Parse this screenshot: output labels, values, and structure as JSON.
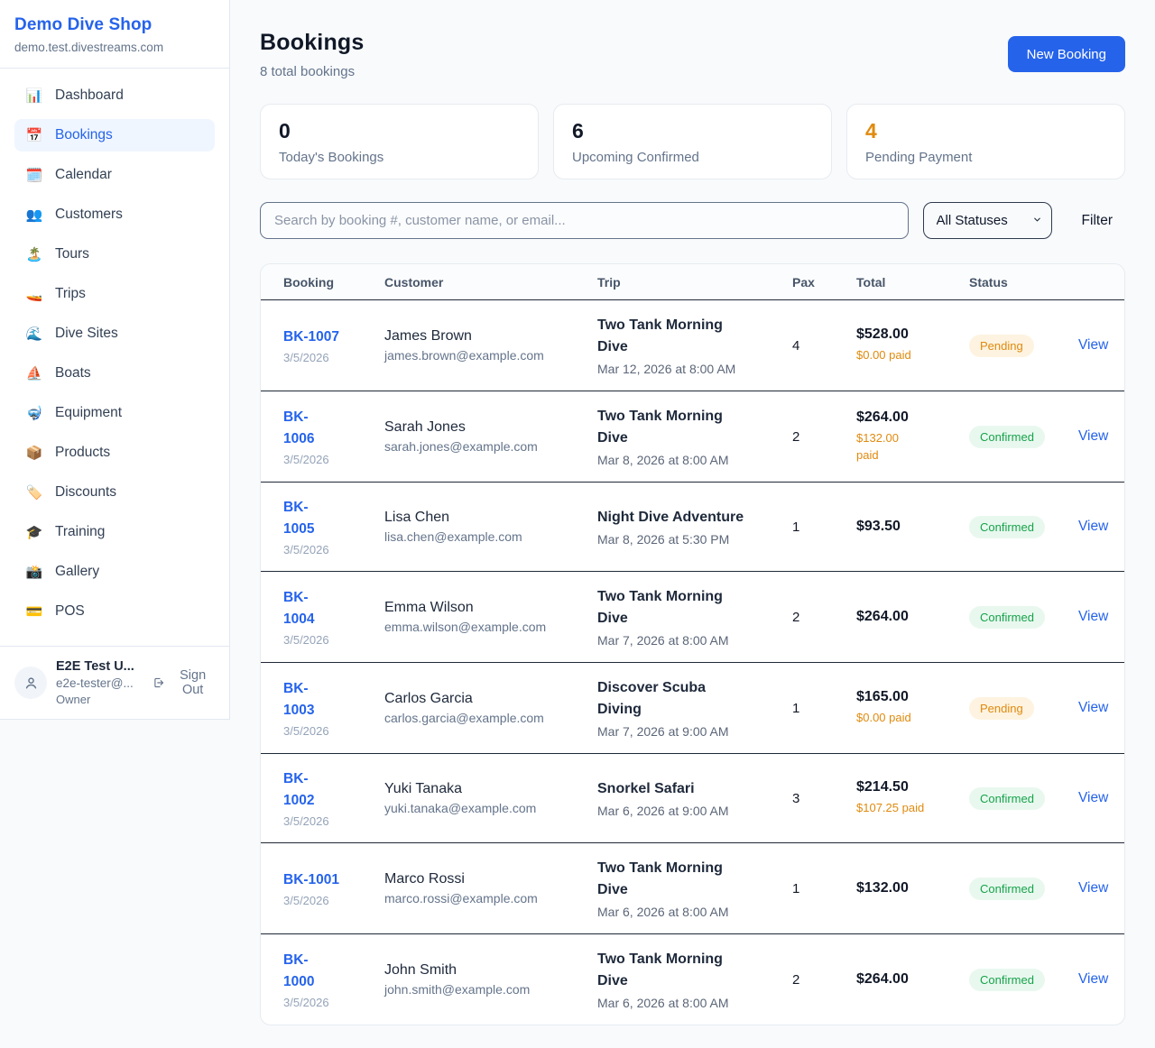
{
  "sidebar": {
    "brand": "Demo Dive Shop",
    "domain": "demo.test.divestreams.com",
    "items": [
      {
        "label": "Dashboard",
        "icon_name": "bar-chart-icon",
        "icon": "📊",
        "active": false
      },
      {
        "label": "Bookings",
        "icon_name": "calendar-date-icon",
        "icon": "📅",
        "active": true
      },
      {
        "label": "Calendar",
        "icon_name": "calendar-pad-icon",
        "icon": "🗓️",
        "active": false
      },
      {
        "label": "Customers",
        "icon_name": "people-icon",
        "icon": "👥",
        "active": false
      },
      {
        "label": "Tours",
        "icon_name": "island-icon",
        "icon": "🏝️",
        "active": false
      },
      {
        "label": "Trips",
        "icon_name": "speedboat-icon",
        "icon": "🚤",
        "active": false
      },
      {
        "label": "Dive Sites",
        "icon_name": "wave-icon",
        "icon": "🌊",
        "active": false
      },
      {
        "label": "Boats",
        "icon_name": "sailboat-icon",
        "icon": "⛵",
        "active": false
      },
      {
        "label": "Equipment",
        "icon_name": "diving-mask-icon",
        "icon": "🤿",
        "active": false
      },
      {
        "label": "Products",
        "icon_name": "package-icon",
        "icon": "📦",
        "active": false
      },
      {
        "label": "Discounts",
        "icon_name": "tag-icon",
        "icon": "🏷️",
        "active": false
      },
      {
        "label": "Training",
        "icon_name": "graduation-cap-icon",
        "icon": "🎓",
        "active": false
      },
      {
        "label": "Gallery",
        "icon_name": "camera-icon",
        "icon": "📸",
        "active": false
      },
      {
        "label": "POS",
        "icon_name": "credit-card-icon",
        "icon": "💳",
        "active": false
      }
    ],
    "user": {
      "name": "E2E Test U...",
      "email": "e2e-tester@...",
      "role": "Owner",
      "sign_out_label": "Sign Out"
    }
  },
  "header": {
    "title": "Bookings",
    "subtitle": "8 total bookings",
    "new_booking_label": "New Booking"
  },
  "stats": [
    {
      "value": "0",
      "label": "Today's Bookings",
      "accent": "dark"
    },
    {
      "value": "6",
      "label": "Upcoming Confirmed",
      "accent": "dark"
    },
    {
      "value": "4",
      "label": "Pending Payment",
      "accent": "orange"
    }
  ],
  "filters": {
    "search_placeholder": "Search by booking #, customer name, or email...",
    "status_selected": "All Statuses",
    "filter_label": "Filter"
  },
  "colors": {
    "accent_blue": "#2563eb",
    "accent_orange": "#e08a0e",
    "confirmed_green": "#16a34a",
    "pending_badge_bg": "#fdf3e0",
    "confirmed_badge_bg": "#e9f8ef"
  },
  "table": {
    "columns": [
      "Booking",
      "Customer",
      "Trip",
      "Pax",
      "Total",
      "Status"
    ],
    "view_label": "View",
    "rows": [
      {
        "id": "BK-1007",
        "id_two_lines": false,
        "date": "3/5/2026",
        "customer_name": "James Brown",
        "customer_email": "james.brown@example.com",
        "trip_name": "Two Tank Morning Dive",
        "trip_two_lines": true,
        "trip_datetime": "Mar 12, 2026 at 8:00 AM",
        "pax": "4",
        "total": "$528.00",
        "paid": "$0.00 paid",
        "paid_two_lines": false,
        "status": "Pending",
        "status_type": "pending"
      },
      {
        "id": "BK-1006",
        "id_two_lines": true,
        "date": "3/5/2026",
        "customer_name": "Sarah Jones",
        "customer_email": "sarah.jones@example.com",
        "trip_name": "Two Tank Morning Dive",
        "trip_two_lines": true,
        "trip_datetime": "Mar 8, 2026 at 8:00 AM",
        "pax": "2",
        "total": "$264.00",
        "paid": "$132.00 paid",
        "paid_two_lines": true,
        "status": "Confirmed",
        "status_type": "confirmed"
      },
      {
        "id": "BK-1005",
        "id_two_lines": true,
        "date": "3/5/2026",
        "customer_name": "Lisa Chen",
        "customer_email": "lisa.chen@example.com",
        "trip_name": "Night Dive Adventure",
        "trip_two_lines": false,
        "trip_datetime": "Mar 8, 2026 at 5:30 PM",
        "pax": "1",
        "total": "$93.50",
        "paid": null,
        "paid_two_lines": false,
        "status": "Confirmed",
        "status_type": "confirmed"
      },
      {
        "id": "BK-1004",
        "id_two_lines": true,
        "date": "3/5/2026",
        "customer_name": "Emma Wilson",
        "customer_email": "emma.wilson@example.com",
        "trip_name": "Two Tank Morning Dive",
        "trip_two_lines": true,
        "trip_datetime": "Mar 7, 2026 at 8:00 AM",
        "pax": "2",
        "total": "$264.00",
        "paid": null,
        "paid_two_lines": false,
        "status": "Confirmed",
        "status_type": "confirmed"
      },
      {
        "id": "BK-1003",
        "id_two_lines": true,
        "date": "3/5/2026",
        "customer_name": "Carlos Garcia",
        "customer_email": "carlos.garcia@example.com",
        "trip_name": "Discover Scuba Diving",
        "trip_two_lines": true,
        "trip_datetime": "Mar 7, 2026 at 9:00 AM",
        "pax": "1",
        "total": "$165.00",
        "paid": "$0.00 paid",
        "paid_two_lines": false,
        "status": "Pending",
        "status_type": "pending"
      },
      {
        "id": "BK-1002",
        "id_two_lines": true,
        "date": "3/5/2026",
        "customer_name": "Yuki Tanaka",
        "customer_email": "yuki.tanaka@example.com",
        "trip_name": "Snorkel Safari",
        "trip_two_lines": false,
        "trip_datetime": "Mar 6, 2026 at 9:00 AM",
        "pax": "3",
        "total": "$214.50",
        "paid": "$107.25 paid",
        "paid_two_lines": false,
        "status": "Confirmed",
        "status_type": "confirmed"
      },
      {
        "id": "BK-1001",
        "id_two_lines": false,
        "date": "3/5/2026",
        "customer_name": "Marco Rossi",
        "customer_email": "marco.rossi@example.com",
        "trip_name": "Two Tank Morning Dive",
        "trip_two_lines": true,
        "trip_datetime": "Mar 6, 2026 at 8:00 AM",
        "pax": "1",
        "total": "$132.00",
        "paid": null,
        "paid_two_lines": false,
        "status": "Confirmed",
        "status_type": "confirmed"
      },
      {
        "id": "BK-1000",
        "id_two_lines": true,
        "date": "3/5/2026",
        "customer_name": "John Smith",
        "customer_email": "john.smith@example.com",
        "trip_name": "Two Tank Morning Dive",
        "trip_two_lines": true,
        "trip_datetime": "Mar 6, 2026 at 8:00 AM",
        "pax": "2",
        "total": "$264.00",
        "paid": null,
        "paid_two_lines": false,
        "status": "Confirmed",
        "status_type": "confirmed"
      }
    ]
  }
}
